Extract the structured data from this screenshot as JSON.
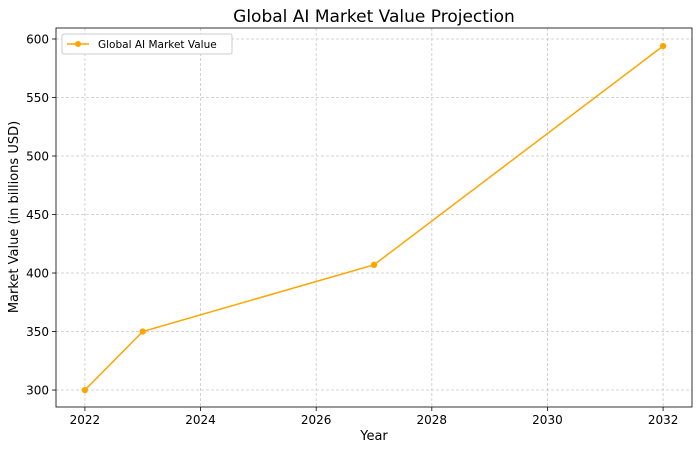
{
  "chart_data": {
    "type": "line",
    "title": "Global AI Market Value Projection",
    "xlabel": "Year",
    "ylabel": "Market Value (in billions USD)",
    "x": [
      2022,
      2023,
      2027,
      2032
    ],
    "series": [
      {
        "name": "Global AI Market Value",
        "values": [
          300,
          350,
          407,
          594
        ],
        "color": "#ffa500",
        "marker": "circle"
      }
    ],
    "xticks": [
      2022,
      2024,
      2026,
      2028,
      2030,
      2032
    ],
    "yticks": [
      300,
      350,
      400,
      450,
      500,
      550,
      600
    ],
    "xlim": [
      2021.5,
      2032.5
    ],
    "ylim": [
      285.5,
      609.4
    ],
    "grid": true,
    "legend": "top-left"
  }
}
